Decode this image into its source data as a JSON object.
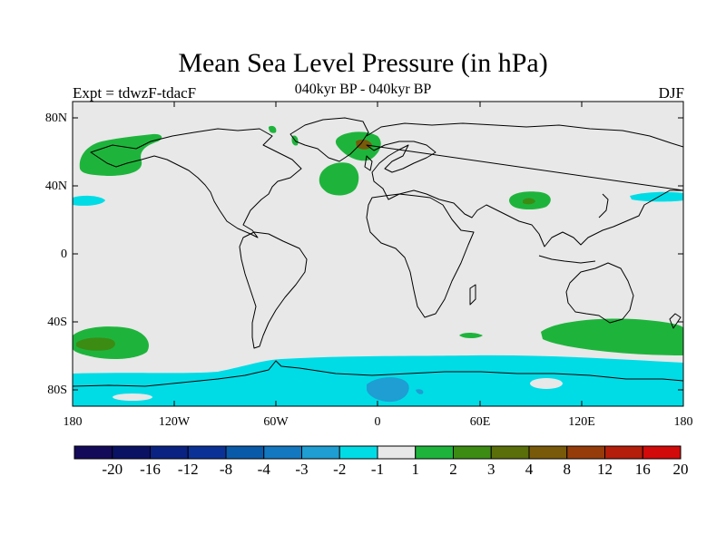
{
  "title": "Mean Sea Level Pressure (in hPa)",
  "subtitle_left": "Expt = tdwzF-tdacF",
  "subtitle_center": "040kyr BP - 040kyr BP",
  "subtitle_right": "DJF",
  "lat_labels": [
    "80N",
    "40N",
    "0",
    "40S",
    "80S"
  ],
  "lon_labels": [
    "180",
    "120W",
    "60W",
    "0",
    "60E",
    "120E",
    "180"
  ],
  "colorbar": {
    "labels": [
      "-20",
      "-16",
      "-12",
      "-8",
      "-4",
      "-3",
      "-2",
      "-1",
      "1",
      "2",
      "3",
      "4",
      "8",
      "12",
      "16",
      "20"
    ],
    "colors": [
      "#140a5a",
      "#0a1264",
      "#0a2282",
      "#0a3296",
      "#0a5aaa",
      "#1478c0",
      "#1e9ed2",
      "#00dce6",
      "#e8e8e8",
      "#1eb43c",
      "#3c8c14",
      "#5a6e0a",
      "#785a0a",
      "#963c0a",
      "#b41e0a",
      "#d20a0a"
    ]
  },
  "map": {
    "background_color": "#e8e8e8",
    "coast_color": "#000000",
    "positive_color": "#1eb43c",
    "positive_strong_color": "#3c8c14",
    "positive_core_color": "#785a0a",
    "negative_color": "#00dce6",
    "negative_strong_color": "#1e9ed2",
    "negative_core_color": "#1478c0"
  }
}
